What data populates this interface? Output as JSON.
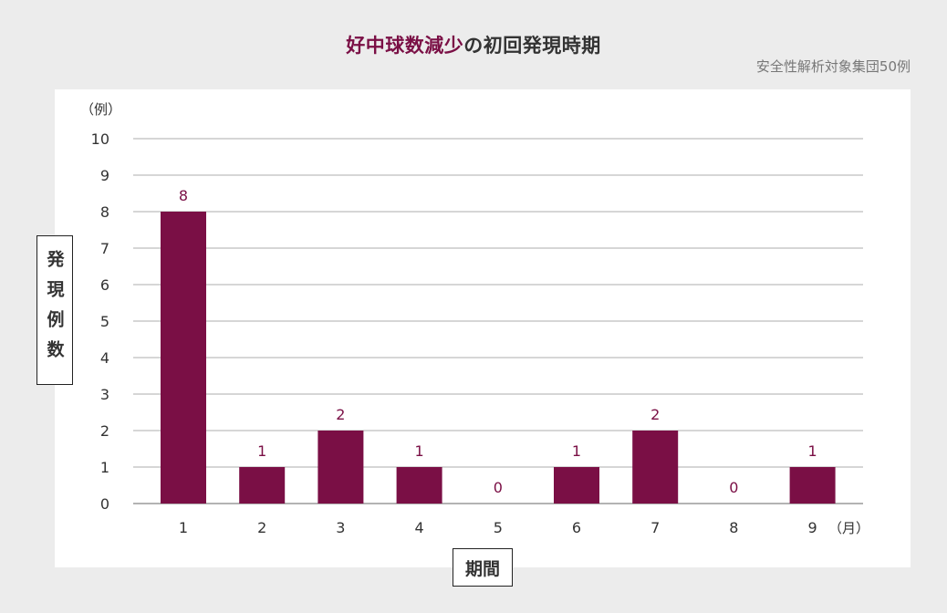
{
  "header": {
    "title_accent": "好中球数減少",
    "title_rest": "の初回発現時期",
    "subtitle": "安全性解析対象集団50例"
  },
  "colors": {
    "accent": "#7a0f45",
    "grid": "#c9c9c9"
  },
  "chart_data": {
    "type": "bar",
    "categories": [
      "1",
      "2",
      "3",
      "4",
      "5",
      "6",
      "7",
      "8",
      "9"
    ],
    "values": [
      8,
      1,
      2,
      1,
      0,
      1,
      2,
      0,
      1
    ],
    "data_labels": [
      "8",
      "1",
      "2",
      "1",
      "0",
      "1",
      "2",
      "0",
      "1"
    ],
    "xlabel": "期間",
    "xunit": "（月）",
    "ylabel": "発現例数",
    "yunit": "（例）",
    "ylim": [
      0,
      10
    ],
    "yticks": [
      "0",
      "1",
      "2",
      "3",
      "4",
      "5",
      "6",
      "7",
      "8",
      "9",
      "10"
    ],
    "grid": true,
    "legend": "none"
  }
}
